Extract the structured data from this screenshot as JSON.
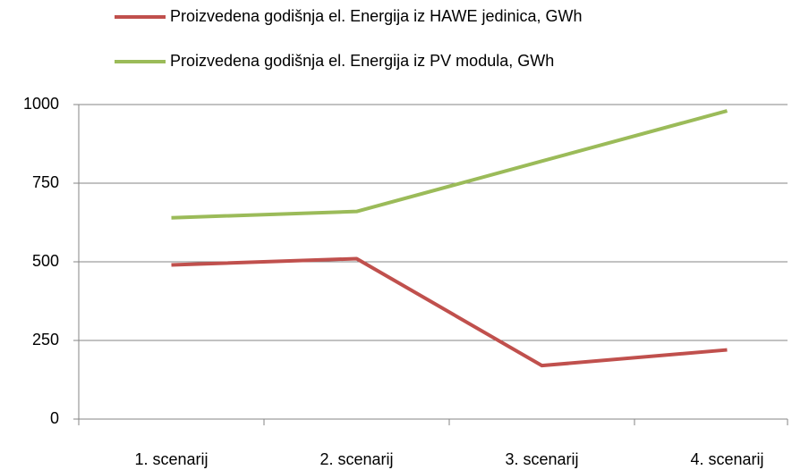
{
  "chart_data": {
    "type": "line",
    "categories": [
      "1. scenarij",
      "2. scenarij",
      "3. scenarij",
      "4. scenarij"
    ],
    "series": [
      {
        "name": "Proizvedena godišnja el. Energija iz HAWE jedinica, GWh",
        "color": "#c0504d",
        "values": [
          490,
          510,
          170,
          220
        ]
      },
      {
        "name": "Proizvedena godišnja el. Energija iz PV modula, GWh",
        "color": "#9bbb59",
        "values": [
          640,
          660,
          820,
          980
        ]
      }
    ],
    "ylim": [
      0,
      1000
    ],
    "yticks": [
      0,
      250,
      500,
      750,
      1000
    ],
    "grid": true,
    "legend": "top"
  }
}
